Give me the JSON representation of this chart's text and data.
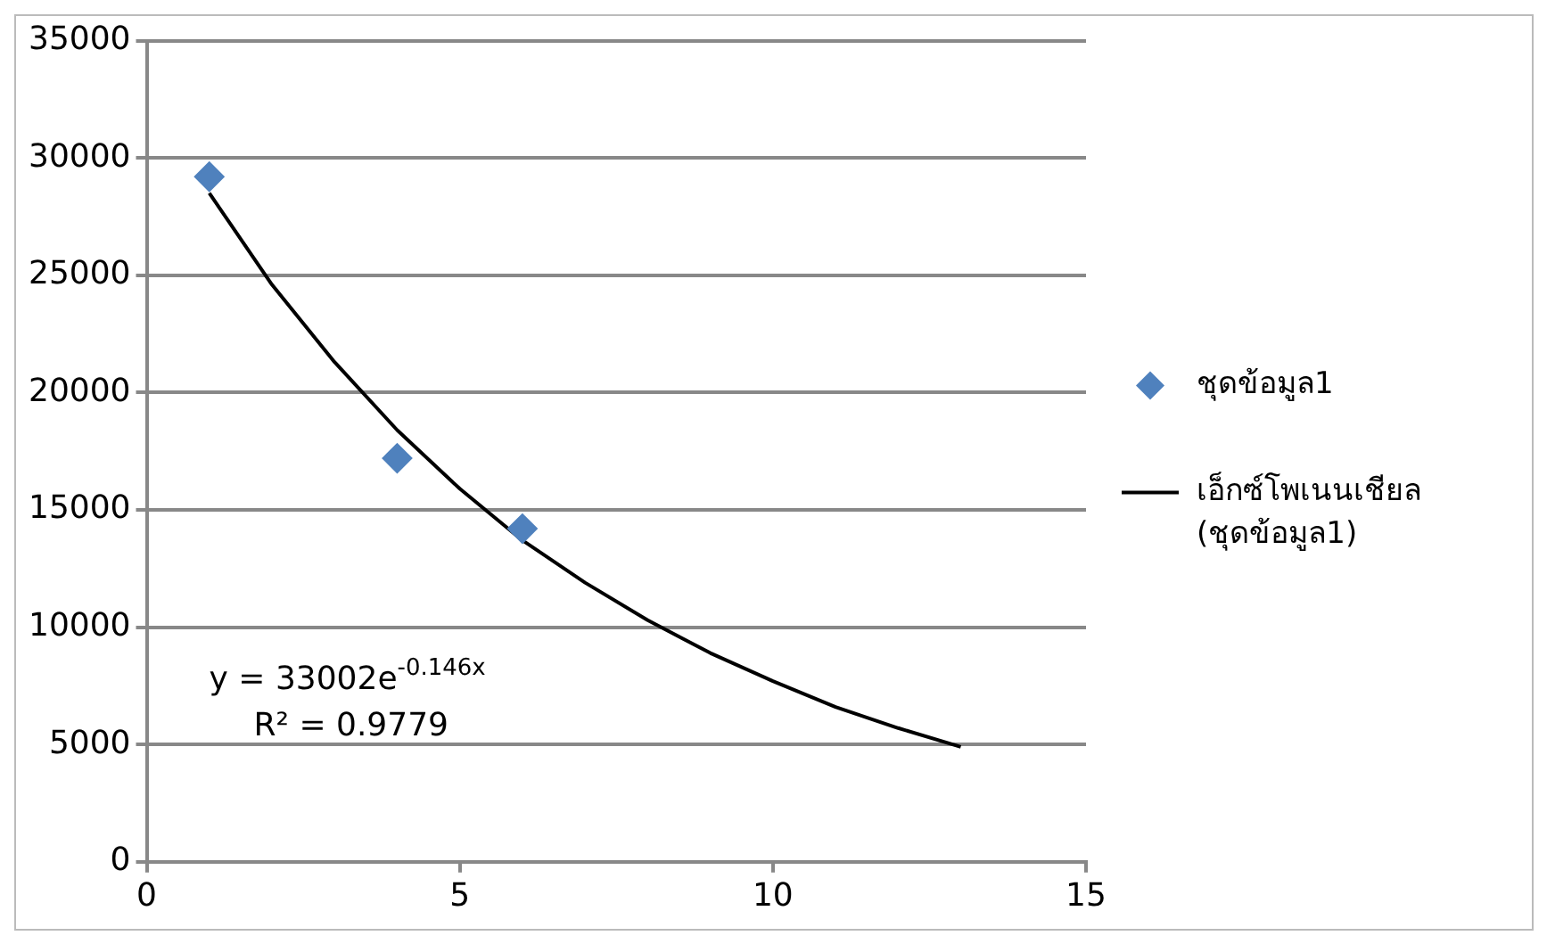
{
  "chart_data": {
    "type": "scatter",
    "series": [
      {
        "name": "ชุดข้อมูล1",
        "type": "scatter",
        "color": "#4f81bd",
        "x": [
          1,
          4,
          6
        ],
        "values": [
          29200,
          17200,
          14200
        ]
      },
      {
        "name": "เอ็กซ์โพเนนเชียล (ชุดข้อมูล1)",
        "type": "line",
        "color": "#000000",
        "marker": "none",
        "line_style": "solid",
        "x": [
          1,
          2,
          3,
          4,
          5,
          6,
          7,
          8,
          9,
          10,
          11,
          12,
          13
        ],
        "values": [
          28500,
          24600,
          21300,
          18400,
          15900,
          13700,
          11900,
          10300,
          8900,
          7700,
          6600,
          5700,
          4900
        ]
      }
    ],
    "xlim": [
      0,
      15
    ],
    "xticks": [
      0,
      5,
      10,
      15
    ],
    "ylim": [
      0,
      35000
    ],
    "yticks": [
      0,
      5000,
      10000,
      15000,
      20000,
      25000,
      30000,
      35000
    ],
    "grid": "y",
    "legend": "right",
    "marker": "diamond",
    "annotations": [
      "y = 33002e$^{-0.146x}$",
      "R² = 0.9779"
    ]
  }
}
